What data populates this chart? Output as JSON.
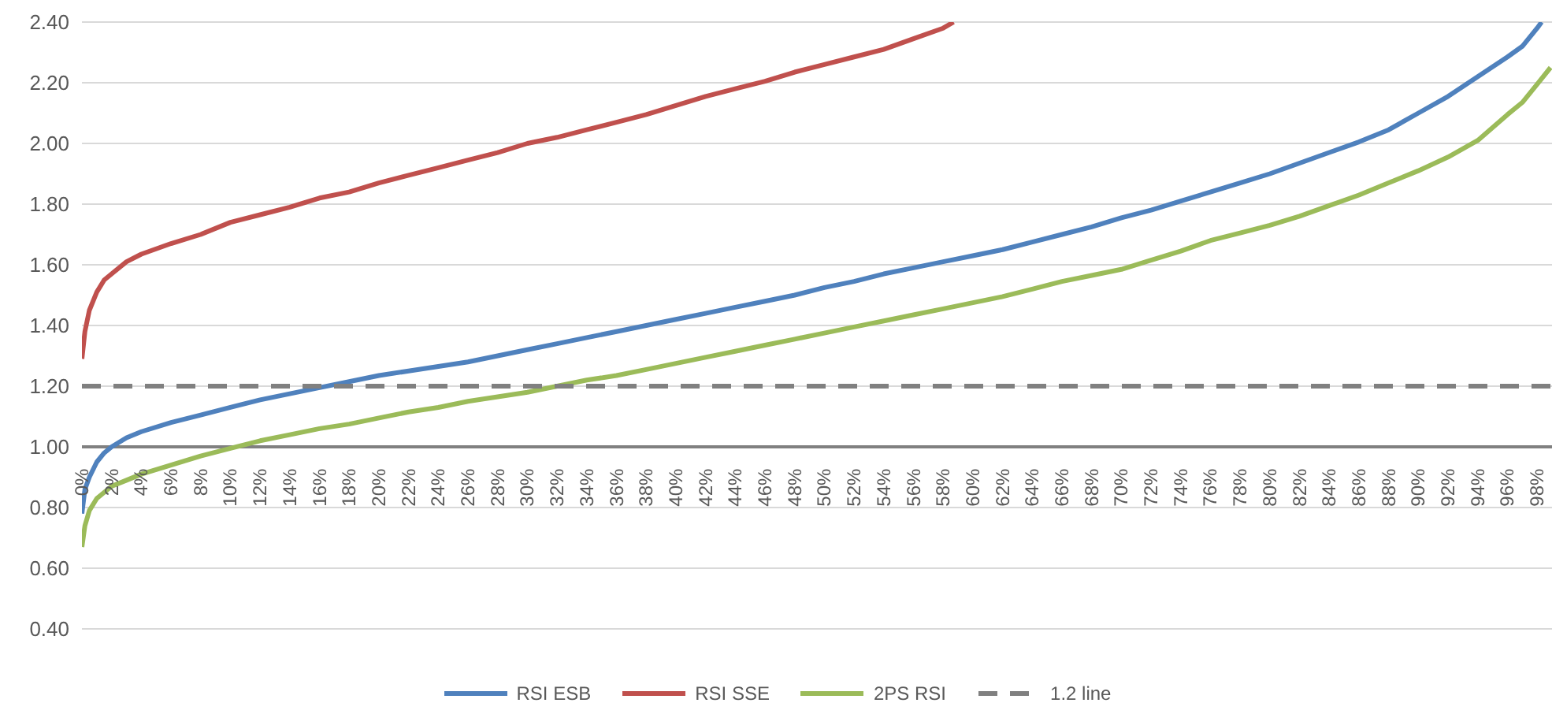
{
  "chart_data": {
    "type": "line",
    "xlim": [
      0,
      99
    ],
    "ylim": [
      0.4,
      2.4
    ],
    "xticks": [
      {
        "value": 0,
        "label": "0%"
      },
      {
        "value": 2,
        "label": "2%"
      },
      {
        "value": 4,
        "label": "4%"
      },
      {
        "value": 6,
        "label": "6%"
      },
      {
        "value": 8,
        "label": "8%"
      },
      {
        "value": 10,
        "label": "10%"
      },
      {
        "value": 12,
        "label": "12%"
      },
      {
        "value": 14,
        "label": "14%"
      },
      {
        "value": 16,
        "label": "16%"
      },
      {
        "value": 18,
        "label": "18%"
      },
      {
        "value": 20,
        "label": "20%"
      },
      {
        "value": 22,
        "label": "22%"
      },
      {
        "value": 24,
        "label": "24%"
      },
      {
        "value": 26,
        "label": "26%"
      },
      {
        "value": 28,
        "label": "28%"
      },
      {
        "value": 30,
        "label": "30%"
      },
      {
        "value": 32,
        "label": "32%"
      },
      {
        "value": 34,
        "label": "34%"
      },
      {
        "value": 36,
        "label": "36%"
      },
      {
        "value": 38,
        "label": "38%"
      },
      {
        "value": 40,
        "label": "40%"
      },
      {
        "value": 42,
        "label": "42%"
      },
      {
        "value": 44,
        "label": "44%"
      },
      {
        "value": 46,
        "label": "46%"
      },
      {
        "value": 48,
        "label": "48%"
      },
      {
        "value": 50,
        "label": "50%"
      },
      {
        "value": 52,
        "label": "52%"
      },
      {
        "value": 54,
        "label": "54%"
      },
      {
        "value": 56,
        "label": "56%"
      },
      {
        "value": 58,
        "label": "58%"
      },
      {
        "value": 60,
        "label": "60%"
      },
      {
        "value": 62,
        "label": "62%"
      },
      {
        "value": 64,
        "label": "64%"
      },
      {
        "value": 66,
        "label": "66%"
      },
      {
        "value": 68,
        "label": "68%"
      },
      {
        "value": 70,
        "label": "70%"
      },
      {
        "value": 72,
        "label": "72%"
      },
      {
        "value": 74,
        "label": "74%"
      },
      {
        "value": 76,
        "label": "76%"
      },
      {
        "value": 78,
        "label": "78%"
      },
      {
        "value": 80,
        "label": "80%"
      },
      {
        "value": 82,
        "label": "82%"
      },
      {
        "value": 84,
        "label": "84%"
      },
      {
        "value": 86,
        "label": "86%"
      },
      {
        "value": 88,
        "label": "88%"
      },
      {
        "value": 90,
        "label": "90%"
      },
      {
        "value": 92,
        "label": "92%"
      },
      {
        "value": 94,
        "label": "94%"
      },
      {
        "value": 96,
        "label": "96%"
      },
      {
        "value": 98,
        "label": "98%"
      }
    ],
    "yticks": [
      {
        "value": 0.4,
        "label": "0.40"
      },
      {
        "value": 0.6,
        "label": "0.60"
      },
      {
        "value": 0.8,
        "label": "0.80"
      },
      {
        "value": 1,
        "label": "1.00"
      },
      {
        "value": 1.2,
        "label": "1.20"
      },
      {
        "value": 1.4,
        "label": "1.40"
      },
      {
        "value": 1.6,
        "label": "1.60"
      },
      {
        "value": 1.8,
        "label": "1.80"
      },
      {
        "value": 2,
        "label": "2.00"
      },
      {
        "value": 2.2,
        "label": "2.20"
      },
      {
        "value": 2.4,
        "label": "2.40"
      }
    ],
    "grid": "y",
    "legend": "bottom",
    "marker": "none",
    "ref_lines": [
      {
        "axis": "y",
        "value": 1,
        "color": "#808080"
      }
    ],
    "series": [
      {
        "name": "RSI ESB",
        "color": "#4f81bd",
        "x": [
          0,
          0.2,
          0.5,
          1,
          1.5,
          2,
          3,
          4,
          6,
          8,
          10,
          12,
          14,
          16,
          18,
          20,
          22,
          24,
          26,
          28,
          30,
          32,
          34,
          36,
          38,
          40,
          42,
          44,
          46,
          48,
          50,
          52,
          54,
          56,
          58,
          60,
          62,
          64,
          66,
          68,
          70,
          72,
          74,
          76,
          78,
          80,
          82,
          84,
          86,
          88,
          90,
          92,
          94,
          96,
          97,
          98,
          98.3
        ],
        "values": [
          0.78,
          0.86,
          0.9,
          0.95,
          0.98,
          1.0,
          1.03,
          1.05,
          1.08,
          1.105,
          1.13,
          1.155,
          1.175,
          1.195,
          1.215,
          1.235,
          1.25,
          1.265,
          1.28,
          1.3,
          1.32,
          1.34,
          1.36,
          1.38,
          1.4,
          1.42,
          1.44,
          1.46,
          1.48,
          1.5,
          1.525,
          1.545,
          1.57,
          1.59,
          1.61,
          1.63,
          1.65,
          1.675,
          1.7,
          1.725,
          1.755,
          1.78,
          1.81,
          1.84,
          1.87,
          1.9,
          1.935,
          1.97,
          2.005,
          2.045,
          2.1,
          2.155,
          2.22,
          2.285,
          2.32,
          2.38,
          2.4
        ]
      },
      {
        "name": "RSI SSE",
        "color": "#c0504d",
        "x": [
          0,
          0.2,
          0.5,
          1,
          1.5,
          2,
          3,
          4,
          6,
          8,
          10,
          12,
          14,
          16,
          18,
          20,
          22,
          24,
          26,
          28,
          30,
          32,
          34,
          36,
          38,
          40,
          42,
          44,
          46,
          48,
          50,
          52,
          54,
          56,
          58,
          58.7
        ],
        "values": [
          1.29,
          1.38,
          1.45,
          1.51,
          1.55,
          1.57,
          1.61,
          1.635,
          1.67,
          1.7,
          1.74,
          1.765,
          1.79,
          1.82,
          1.84,
          1.87,
          1.895,
          1.92,
          1.945,
          1.97,
          2.0,
          2.02,
          2.045,
          2.07,
          2.095,
          2.125,
          2.155,
          2.18,
          2.205,
          2.235,
          2.26,
          2.285,
          2.31,
          2.345,
          2.38,
          2.4
        ]
      },
      {
        "name": "2PS RSI",
        "color": "#9bbb59",
        "x": [
          0,
          0.2,
          0.5,
          1,
          2,
          3,
          4,
          6,
          8,
          10,
          12,
          14,
          16,
          18,
          20,
          22,
          24,
          26,
          28,
          30,
          32,
          34,
          36,
          38,
          40,
          42,
          44,
          46,
          48,
          50,
          52,
          54,
          56,
          58,
          60,
          62,
          64,
          66,
          68,
          70,
          72,
          74,
          76,
          78,
          80,
          82,
          84,
          86,
          88,
          90,
          92,
          94,
          96,
          97,
          98,
          98.9
        ],
        "values": [
          0.67,
          0.74,
          0.79,
          0.83,
          0.87,
          0.89,
          0.91,
          0.94,
          0.97,
          0.995,
          1.02,
          1.04,
          1.06,
          1.075,
          1.095,
          1.115,
          1.13,
          1.15,
          1.165,
          1.18,
          1.2,
          1.22,
          1.235,
          1.255,
          1.275,
          1.295,
          1.315,
          1.335,
          1.355,
          1.375,
          1.395,
          1.415,
          1.435,
          1.455,
          1.475,
          1.495,
          1.52,
          1.545,
          1.565,
          1.585,
          1.615,
          1.645,
          1.68,
          1.705,
          1.73,
          1.76,
          1.795,
          1.83,
          1.87,
          1.91,
          1.955,
          2.01,
          2.095,
          2.135,
          2.195,
          2.25
        ]
      },
      {
        "name": "1.2 line",
        "color": "#808080",
        "line_style": "dashed",
        "x": [
          0,
          99
        ],
        "values": [
          1.2,
          1.2
        ]
      }
    ]
  }
}
